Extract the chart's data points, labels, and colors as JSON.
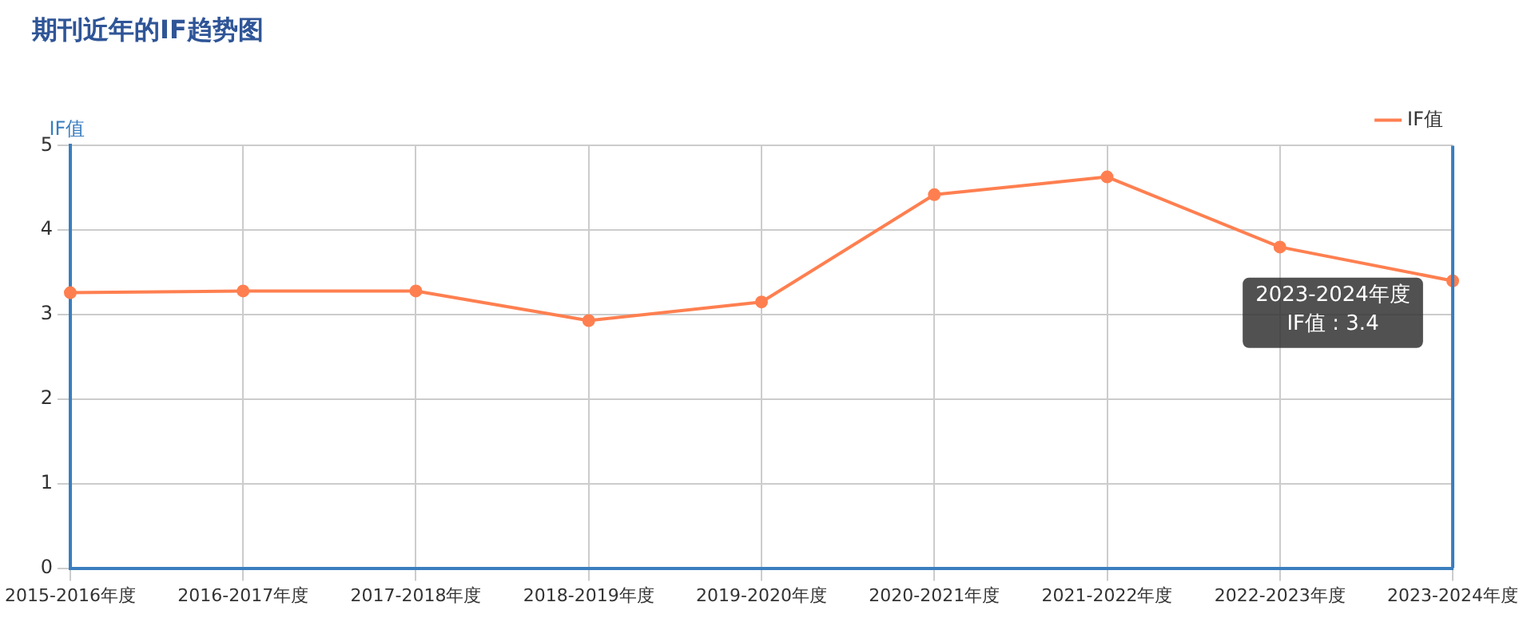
{
  "chart_data": {
    "type": "line",
    "title": "期刊近年的IF趋势图",
    "ylabel": "IF值",
    "categories": [
      "2015-2016年度",
      "2016-2017年度",
      "2017-2018年度",
      "2018-2019年度",
      "2019-2020年度",
      "2020-2021年度",
      "2021-2022年度",
      "2022-2023年度",
      "2023-2024年度"
    ],
    "series": [
      {
        "name": "IF值",
        "color": "#ff7f50",
        "values": [
          3.26,
          3.28,
          3.28,
          2.93,
          3.15,
          4.42,
          4.63,
          3.8,
          3.4
        ]
      }
    ],
    "ylim": [
      0,
      5
    ],
    "yticks": [
      0,
      1,
      2,
      3,
      4,
      5
    ],
    "grid": true,
    "legend": "top right",
    "marker": "circle",
    "line_style": "solid",
    "annotations": [
      {
        "text": "2023-2024年度\nIF值 : 3.4",
        "x": "2023-2024年度",
        "y": 3.4
      }
    ]
  }
}
